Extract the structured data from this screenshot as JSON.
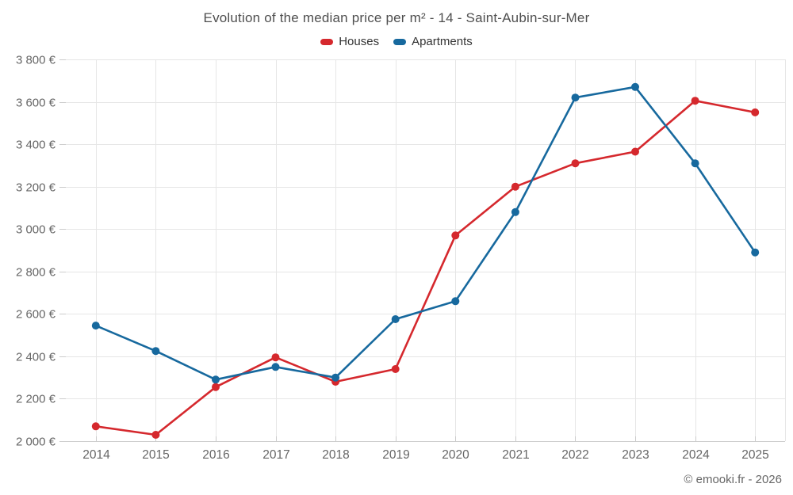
{
  "title": "Evolution of the median price per m² - 14 - Saint-Aubin-sur-Mer",
  "credits": "© emooki.fr - 2026",
  "colors": {
    "houses": "#d5282d",
    "apartments": "#17699e",
    "grid": "#e6e6e6",
    "axis_line": "#cccccc",
    "tick": "#cccccc",
    "axis_label": "#666666",
    "title_text": "#4f4f4f",
    "legend_text": "#333333",
    "background": "#ffffff"
  },
  "chart_data": {
    "type": "line",
    "title": "Evolution of the median price per m² - 14 - Saint-Aubin-sur-Mer",
    "x": [
      2014,
      2015,
      2016,
      2017,
      2018,
      2019,
      2020,
      2021,
      2022,
      2023,
      2024,
      2025
    ],
    "xticks": [
      "2014",
      "2015",
      "2016",
      "2017",
      "2018",
      "2019",
      "2020",
      "2021",
      "2022",
      "2023",
      "2024",
      "2025"
    ],
    "series": [
      {
        "name": "Houses",
        "color": "#d5282d",
        "values": [
          2070,
          2030,
          2255,
          2395,
          2280,
          2340,
          2970,
          3200,
          3310,
          3365,
          3605,
          3550
        ]
      },
      {
        "name": "Apartments",
        "color": "#17699e",
        "values": [
          2545,
          2425,
          2290,
          2350,
          2300,
          2575,
          2660,
          3080,
          3620,
          3670,
          3310,
          2890
        ]
      }
    ],
    "ylim": [
      2000,
      3800
    ],
    "ytick_step": 200,
    "yticks": [
      "2 000 €",
      "2 200 €",
      "2 400 €",
      "2 600 €",
      "2 800 €",
      "3 000 €",
      "3 200 €",
      "3 400 €",
      "3 600 €",
      "3 800 €"
    ],
    "unit": "€",
    "xlabel": "",
    "ylabel": "",
    "grid": true,
    "legend_position": "top",
    "legend": [
      "Houses",
      "Apartments"
    ]
  }
}
